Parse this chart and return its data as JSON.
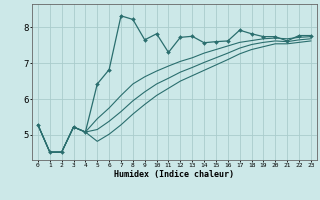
{
  "xlabel": "Humidex (Indice chaleur)",
  "background_color": "#cce8e8",
  "grid_color": "#aacccc",
  "line_color": "#2a6e6e",
  "xlim": [
    -0.5,
    23.5
  ],
  "ylim": [
    4.3,
    8.65
  ],
  "xticks": [
    0,
    1,
    2,
    3,
    4,
    5,
    6,
    7,
    8,
    9,
    10,
    11,
    12,
    13,
    14,
    15,
    16,
    17,
    18,
    19,
    20,
    21,
    22,
    23
  ],
  "yticks": [
    5,
    6,
    7,
    8
  ],
  "line1_x": [
    0,
    1,
    2,
    3,
    4,
    5,
    6,
    7,
    8,
    9,
    10,
    11,
    12,
    13,
    14,
    15,
    16,
    17,
    18,
    19,
    20,
    21,
    22,
    23
  ],
  "line1_y": [
    5.28,
    4.52,
    4.52,
    5.22,
    5.08,
    6.42,
    6.82,
    8.32,
    8.22,
    7.65,
    7.82,
    7.3,
    7.72,
    7.75,
    7.57,
    7.6,
    7.62,
    7.92,
    7.82,
    7.74,
    7.74,
    7.62,
    7.77,
    7.77
  ],
  "line2_x": [
    0,
    1,
    2,
    3,
    4,
    5,
    6,
    7,
    8,
    9,
    10,
    11,
    12,
    13,
    14,
    15,
    16,
    17,
    18,
    19,
    20,
    21,
    22,
    23
  ],
  "line2_y": [
    5.28,
    4.52,
    4.52,
    5.22,
    5.08,
    5.45,
    5.75,
    6.1,
    6.42,
    6.62,
    6.78,
    6.92,
    7.05,
    7.15,
    7.28,
    7.38,
    7.48,
    7.58,
    7.63,
    7.68,
    7.7,
    7.68,
    7.72,
    7.74
  ],
  "line3_x": [
    0,
    1,
    2,
    3,
    4,
    5,
    6,
    7,
    8,
    9,
    10,
    11,
    12,
    13,
    14,
    15,
    16,
    17,
    18,
    19,
    20,
    21,
    22,
    23
  ],
  "line3_y": [
    5.28,
    4.52,
    4.52,
    5.22,
    5.08,
    5.15,
    5.38,
    5.65,
    5.95,
    6.2,
    6.42,
    6.58,
    6.75,
    6.88,
    7.02,
    7.15,
    7.28,
    7.42,
    7.52,
    7.58,
    7.62,
    7.6,
    7.65,
    7.68
  ],
  "line4_x": [
    0,
    1,
    2,
    3,
    4,
    5,
    6,
    7,
    8,
    9,
    10,
    11,
    12,
    13,
    14,
    15,
    16,
    17,
    18,
    19,
    20,
    21,
    22,
    23
  ],
  "line4_y": [
    5.28,
    4.52,
    4.52,
    5.22,
    5.08,
    4.82,
    5.02,
    5.28,
    5.58,
    5.85,
    6.1,
    6.3,
    6.5,
    6.65,
    6.8,
    6.95,
    7.1,
    7.26,
    7.38,
    7.46,
    7.54,
    7.54,
    7.58,
    7.62
  ]
}
